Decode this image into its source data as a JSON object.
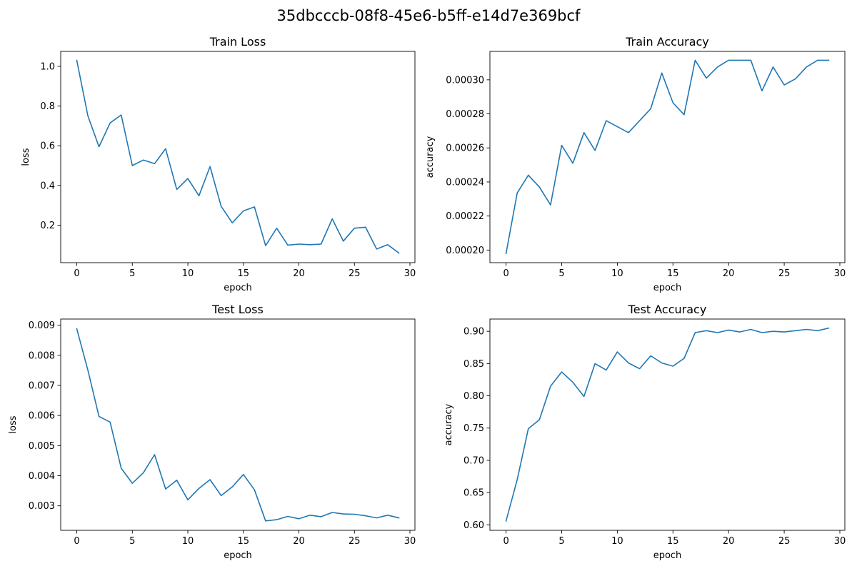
{
  "figure": {
    "suptitle": "35dbcccb-08f8-45e6-b5ff-e14d7e369bcf"
  },
  "colors": {
    "line": "#1f77b4",
    "axes": "#000000"
  },
  "chart_data": [
    {
      "type": "line",
      "title": "Train Loss",
      "xlabel": "epoch",
      "ylabel": "loss",
      "xlim": [
        -1.45,
        30.45
      ],
      "ylim": [
        0.0115,
        1.075
      ],
      "xticks": [
        0,
        5,
        10,
        15,
        20,
        25,
        30
      ],
      "xtick_labels": [
        "0",
        "5",
        "10",
        "15",
        "20",
        "25",
        "30"
      ],
      "yticks": [
        0.2,
        0.4,
        0.6,
        0.8,
        1.0
      ],
      "ytick_labels": [
        "0.2",
        "0.4",
        "0.6",
        "0.8",
        "1.0"
      ],
      "x": [
        0,
        1,
        2,
        3,
        4,
        5,
        6,
        7,
        8,
        9,
        10,
        11,
        12,
        13,
        14,
        15,
        16,
        17,
        18,
        19,
        20,
        21,
        22,
        23,
        24,
        25,
        26,
        27,
        28,
        29
      ],
      "values": [
        1.03,
        0.75,
        0.595,
        0.715,
        0.755,
        0.5,
        0.528,
        0.51,
        0.585,
        0.38,
        0.435,
        0.348,
        0.495,
        0.295,
        0.212,
        0.272,
        0.292,
        0.097,
        0.185,
        0.1,
        0.105,
        0.102,
        0.105,
        0.232,
        0.12,
        0.185,
        0.19,
        0.08,
        0.102,
        0.06
      ]
    },
    {
      "type": "line",
      "title": "Train Accuracy",
      "xlabel": "epoch",
      "ylabel": "accuracy",
      "xlim": [
        -1.45,
        30.45
      ],
      "ylim": [
        0.0001926,
        0.0003167
      ],
      "xticks": [
        0,
        5,
        10,
        15,
        20,
        25,
        30
      ],
      "xtick_labels": [
        "0",
        "5",
        "10",
        "15",
        "20",
        "25",
        "30"
      ],
      "yticks": [
        0.0002,
        0.00022,
        0.00024,
        0.00026,
        0.00028,
        0.0003
      ],
      "ytick_labels": [
        "0.00020",
        "0.00022",
        "0.00024",
        "0.00026",
        "0.00028",
        "0.00030"
      ],
      "x": [
        0,
        1,
        2,
        3,
        4,
        5,
        6,
        7,
        8,
        9,
        10,
        11,
        12,
        13,
        14,
        15,
        16,
        17,
        18,
        19,
        20,
        21,
        22,
        23,
        24,
        25,
        26,
        27,
        28,
        29
      ],
      "values": [
        0.000198,
        0.0002335,
        0.000244,
        0.000237,
        0.0002265,
        0.0002615,
        0.000251,
        0.000269,
        0.0002585,
        0.000276,
        0.0002725,
        0.000269,
        0.000276,
        0.000283,
        0.000304,
        0.0002865,
        0.0002795,
        0.0003115,
        0.000301,
        0.0003075,
        0.0003115,
        0.0003115,
        0.0003115,
        0.0002935,
        0.0003075,
        0.000297,
        0.0003005,
        0.0003075,
        0.0003115,
        0.0003115
      ]
    },
    {
      "type": "line",
      "title": "Test Loss",
      "xlabel": "epoch",
      "ylabel": "loss",
      "xlim": [
        -1.45,
        30.45
      ],
      "ylim": [
        0.002187,
        0.009203
      ],
      "xticks": [
        0,
        5,
        10,
        15,
        20,
        25,
        30
      ],
      "xtick_labels": [
        "0",
        "5",
        "10",
        "15",
        "20",
        "25",
        "30"
      ],
      "yticks": [
        0.003,
        0.004,
        0.005,
        0.006,
        0.007,
        0.008,
        0.009
      ],
      "ytick_labels": [
        "0.003",
        "0.004",
        "0.005",
        "0.006",
        "0.007",
        "0.008",
        "0.009"
      ],
      "x": [
        0,
        1,
        2,
        3,
        4,
        5,
        6,
        7,
        8,
        9,
        10,
        11,
        12,
        13,
        14,
        15,
        16,
        17,
        18,
        19,
        20,
        21,
        22,
        23,
        24,
        25,
        26,
        27,
        28,
        29
      ],
      "values": [
        0.00888,
        0.0075,
        0.00597,
        0.00578,
        0.00425,
        0.00375,
        0.0041,
        0.0047,
        0.00356,
        0.00385,
        0.0032,
        0.00358,
        0.00387,
        0.00334,
        0.00363,
        0.00404,
        0.00353,
        0.0025,
        0.00254,
        0.00265,
        0.00257,
        0.00269,
        0.00264,
        0.00278,
        0.00273,
        0.00272,
        0.00267,
        0.0026,
        0.00269,
        0.0026
      ]
    },
    {
      "type": "line",
      "title": "Test Accuracy",
      "xlabel": "epoch",
      "ylabel": "accuracy",
      "xlim": [
        -1.45,
        30.45
      ],
      "ylim": [
        0.5915,
        0.919
      ],
      "xticks": [
        0,
        5,
        10,
        15,
        20,
        25,
        30
      ],
      "xtick_labels": [
        "0",
        "5",
        "10",
        "15",
        "20",
        "25",
        "30"
      ],
      "yticks": [
        0.6,
        0.65,
        0.7,
        0.75,
        0.8,
        0.85,
        0.9
      ],
      "ytick_labels": [
        "0.60",
        "0.65",
        "0.70",
        "0.75",
        "0.80",
        "0.85",
        "0.90"
      ],
      "x": [
        0,
        1,
        2,
        3,
        4,
        5,
        6,
        7,
        8,
        9,
        10,
        11,
        12,
        13,
        14,
        15,
        16,
        17,
        18,
        19,
        20,
        21,
        22,
        23,
        24,
        25,
        26,
        27,
        28,
        29
      ],
      "values": [
        0.606,
        0.67,
        0.749,
        0.763,
        0.815,
        0.837,
        0.821,
        0.799,
        0.85,
        0.84,
        0.868,
        0.851,
        0.842,
        0.862,
        0.851,
        0.846,
        0.858,
        0.898,
        0.901,
        0.898,
        0.902,
        0.899,
        0.903,
        0.898,
        0.9,
        0.899,
        0.901,
        0.903,
        0.901,
        0.905
      ]
    }
  ]
}
